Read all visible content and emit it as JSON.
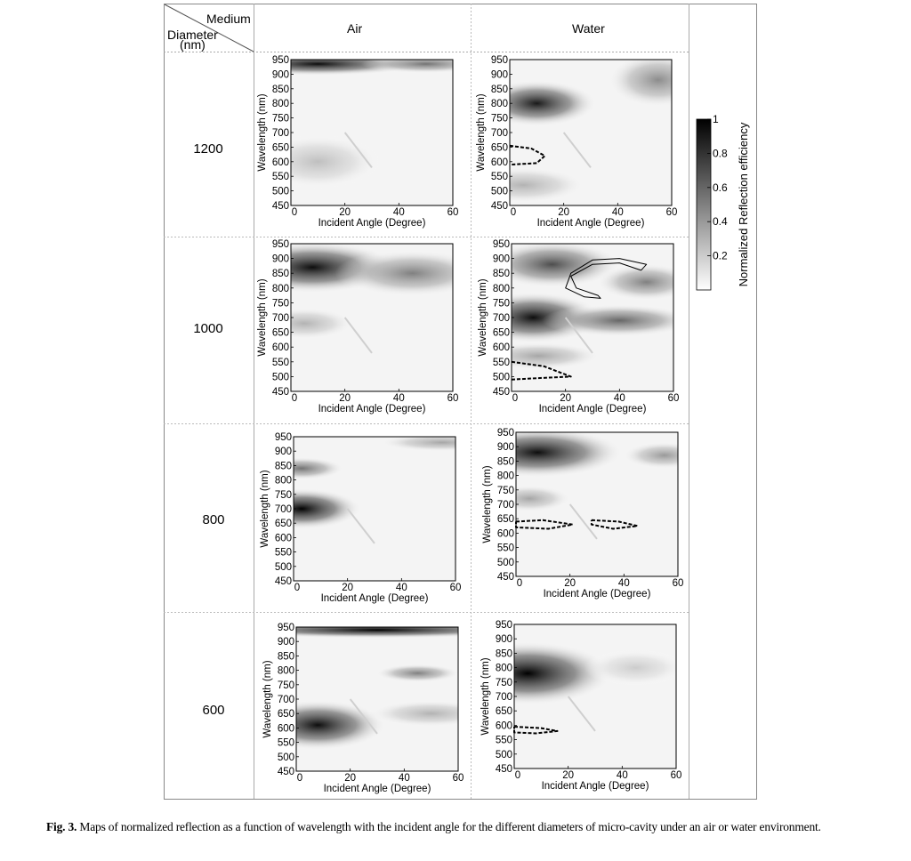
{
  "header": {
    "medium": "Medium",
    "diameter": "Diameter",
    "diameter_unit": "(nm)",
    "col_air": "Air",
    "col_water": "Water"
  },
  "rows": [
    "1200",
    "1000",
    "800",
    "600"
  ],
  "caption": {
    "label": "Fig. 3.",
    "text": "Maps of normalized reflection as a function of wavelength with the incident angle for the different diameters of micro-cavity under an air or water environment."
  },
  "colorbar": {
    "label": "Normalized Reflection efficiency",
    "ticks": [
      "1",
      "0.8",
      "0.6",
      "0.4",
      "0.2"
    ],
    "tick_values": [
      1,
      0.8,
      0.6,
      0.4,
      0.2
    ],
    "range": [
      0,
      1
    ],
    "colors": [
      "#ffffff",
      "#000000"
    ]
  },
  "chart_data": [
    {
      "type": "heatmap",
      "panel": "1200-air",
      "xlabel": "Incident Angle (Degree)",
      "ylabel": "Wavelength (nm)",
      "xlim": [
        0,
        60
      ],
      "ylim": [
        450,
        950
      ],
      "xticks": [
        "0",
        "20",
        "40",
        "60"
      ],
      "yticks": [
        "450",
        "500",
        "550",
        "600",
        "650",
        "700",
        "750",
        "800",
        "850",
        "900",
        "950"
      ],
      "blobs": [
        {
          "x": 10,
          "y": 935,
          "sx": 25,
          "sy": 25,
          "v": 0.95
        },
        {
          "x": 50,
          "y": 935,
          "sx": 15,
          "sy": 20,
          "v": 0.55
        },
        {
          "x": 10,
          "y": 600,
          "sx": 15,
          "sy": 60,
          "v": 0.25
        }
      ],
      "contours": []
    },
    {
      "type": "heatmap",
      "panel": "1200-water",
      "xlabel": "Incident Angle (Degree)",
      "ylabel": "Wavelength (nm)",
      "xlim": [
        0,
        60
      ],
      "ylim": [
        450,
        950
      ],
      "xticks": [
        "0",
        "20",
        "40",
        "60"
      ],
      "yticks": [
        "450",
        "500",
        "550",
        "600",
        "650",
        "700",
        "750",
        "800",
        "850",
        "900",
        "950"
      ],
      "blobs": [
        {
          "x": 10,
          "y": 800,
          "sx": 14,
          "sy": 50,
          "v": 0.9
        },
        {
          "x": 55,
          "y": 880,
          "sx": 12,
          "sy": 60,
          "v": 0.45
        },
        {
          "x": 5,
          "y": 520,
          "sx": 15,
          "sy": 40,
          "v": 0.3
        }
      ],
      "contours": [
        {
          "style": "dashed",
          "points": [
            [
              0,
              655
            ],
            [
              8,
              645
            ],
            [
              13,
              620
            ],
            [
              10,
              595
            ],
            [
              0,
              590
            ]
          ]
        }
      ]
    },
    {
      "type": "heatmap",
      "panel": "1000-air",
      "xlabel": "Incident Angle (Degree)",
      "ylabel": "Wavelength (nm)",
      "xlim": [
        0,
        60
      ],
      "ylim": [
        450,
        950
      ],
      "xticks": [
        "0",
        "20",
        "40",
        "60"
      ],
      "yticks": [
        "450",
        "500",
        "550",
        "600",
        "650",
        "700",
        "750",
        "800",
        "850",
        "900",
        "950"
      ],
      "blobs": [
        {
          "x": 8,
          "y": 870,
          "sx": 20,
          "sy": 55,
          "v": 0.95
        },
        {
          "x": 45,
          "y": 850,
          "sx": 18,
          "sy": 50,
          "v": 0.5
        },
        {
          "x": 5,
          "y": 680,
          "sx": 12,
          "sy": 35,
          "v": 0.3
        }
      ],
      "contours": []
    },
    {
      "type": "heatmap",
      "panel": "1000-water",
      "xlabel": "Incident Angle (Degree)",
      "ylabel": "Wavelength (nm)",
      "xlim": [
        0,
        60
      ],
      "ylim": [
        450,
        950
      ],
      "xticks": [
        "0",
        "20",
        "40",
        "60"
      ],
      "yticks": [
        "450",
        "500",
        "550",
        "600",
        "650",
        "700",
        "750",
        "800",
        "850",
        "900",
        "950"
      ],
      "blobs": [
        {
          "x": 8,
          "y": 700,
          "sx": 16,
          "sy": 55,
          "v": 0.95
        },
        {
          "x": 15,
          "y": 880,
          "sx": 16,
          "sy": 50,
          "v": 0.7
        },
        {
          "x": 40,
          "y": 690,
          "sx": 18,
          "sy": 35,
          "v": 0.6
        },
        {
          "x": 50,
          "y": 820,
          "sx": 12,
          "sy": 40,
          "v": 0.5
        },
        {
          "x": 10,
          "y": 570,
          "sx": 15,
          "sy": 30,
          "v": 0.35
        }
      ],
      "contours": [
        {
          "style": "dashed",
          "points": [
            [
              0,
              550
            ],
            [
              12,
              535
            ],
            [
              22,
              500
            ],
            [
              10,
              495
            ],
            [
              0,
              490
            ]
          ]
        },
        {
          "style": "solid",
          "points": [
            [
              48,
              860
            ],
            [
              40,
              885
            ],
            [
              30,
              880
            ],
            [
              22,
              840
            ],
            [
              24,
              800
            ],
            [
              32,
              775
            ],
            [
              33,
              765
            ],
            [
              27,
              770
            ],
            [
              20,
              800
            ],
            [
              22,
              850
            ],
            [
              30,
              895
            ],
            [
              40,
              900
            ],
            [
              50,
              880
            ],
            [
              48,
              860
            ]
          ]
        }
      ]
    },
    {
      "type": "heatmap",
      "panel": "800-air",
      "xlabel": "Incident Angle (Degree)",
      "ylabel": "Wavelength (nm)",
      "xlim": [
        0,
        60
      ],
      "ylim": [
        450,
        950
      ],
      "xticks": [
        "0",
        "20",
        "40",
        "60"
      ],
      "yticks": [
        "450",
        "500",
        "550",
        "600",
        "650",
        "700",
        "750",
        "800",
        "850",
        "900",
        "950"
      ],
      "blobs": [
        {
          "x": 3,
          "y": 700,
          "sx": 14,
          "sy": 45,
          "v": 1.0
        },
        {
          "x": 3,
          "y": 840,
          "sx": 10,
          "sy": 25,
          "v": 0.55
        },
        {
          "x": 55,
          "y": 930,
          "sx": 15,
          "sy": 20,
          "v": 0.35
        }
      ],
      "contours": []
    },
    {
      "type": "heatmap",
      "panel": "800-water",
      "xlabel": "Incident Angle (Degree)",
      "ylabel": "Wavelength (nm)",
      "xlim": [
        0,
        60
      ],
      "ylim": [
        450,
        950
      ],
      "xticks": [
        "0",
        "20",
        "40",
        "60"
      ],
      "yticks": [
        "450",
        "500",
        "550",
        "600",
        "650",
        "700",
        "750",
        "800",
        "850",
        "900",
        "950"
      ],
      "blobs": [
        {
          "x": 8,
          "y": 880,
          "sx": 20,
          "sy": 55,
          "v": 0.95
        },
        {
          "x": 5,
          "y": 720,
          "sx": 10,
          "sy": 30,
          "v": 0.35
        },
        {
          "x": 55,
          "y": 870,
          "sx": 10,
          "sy": 30,
          "v": 0.4
        }
      ],
      "contours": [
        {
          "style": "dashed",
          "points": [
            [
              0,
              640
            ],
            [
              10,
              645
            ],
            [
              21,
              630
            ],
            [
              12,
              615
            ],
            [
              0,
              620
            ],
            [
              0,
              640
            ]
          ]
        },
        {
          "style": "dashed",
          "points": [
            [
              28,
              645
            ],
            [
              38,
              640
            ],
            [
              45,
              625
            ],
            [
              36,
              615
            ],
            [
              28,
              630
            ],
            [
              28,
              645
            ]
          ]
        }
      ]
    },
    {
      "type": "heatmap",
      "panel": "600-air",
      "xlabel": "Incident Angle (Degree)",
      "ylabel": "Wavelength (nm)",
      "xlim": [
        0,
        60
      ],
      "ylim": [
        450,
        950
      ],
      "xticks": [
        "0",
        "20",
        "40",
        "60"
      ],
      "yticks": [
        "450",
        "500",
        "550",
        "600",
        "650",
        "700",
        "750",
        "800",
        "850",
        "900",
        "950"
      ],
      "blobs": [
        {
          "x": 30,
          "y": 940,
          "sx": 40,
          "sy": 18,
          "v": 1.0
        },
        {
          "x": 8,
          "y": 610,
          "sx": 16,
          "sy": 55,
          "v": 0.95
        },
        {
          "x": 45,
          "y": 790,
          "sx": 10,
          "sy": 20,
          "v": 0.5
        },
        {
          "x": 50,
          "y": 650,
          "sx": 15,
          "sy": 30,
          "v": 0.3
        }
      ],
      "contours": []
    },
    {
      "type": "heatmap",
      "panel": "600-water",
      "xlabel": "Incident Angle (Degree)",
      "ylabel": "Wavelength (nm)",
      "xlim": [
        0,
        60
      ],
      "ylim": [
        450,
        950
      ],
      "xticks": [
        "0",
        "20",
        "40",
        "60"
      ],
      "yticks": [
        "450",
        "500",
        "550",
        "600",
        "650",
        "700",
        "750",
        "800",
        "850",
        "900",
        "950"
      ],
      "blobs": [
        {
          "x": 5,
          "y": 780,
          "sx": 20,
          "sy": 70,
          "v": 1.0
        },
        {
          "x": 45,
          "y": 800,
          "sx": 12,
          "sy": 40,
          "v": 0.2
        }
      ],
      "contours": [
        {
          "style": "dashed",
          "points": [
            [
              0,
              595
            ],
            [
              10,
              590
            ],
            [
              16,
              580
            ],
            [
              8,
              572
            ],
            [
              0,
              575
            ],
            [
              0,
              595
            ]
          ]
        }
      ]
    }
  ]
}
